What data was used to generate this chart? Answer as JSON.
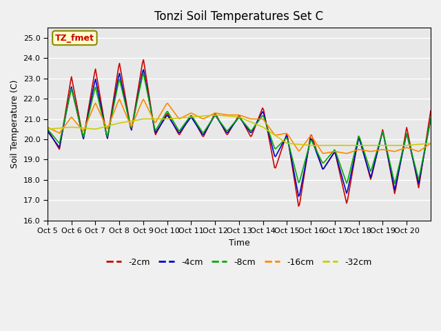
{
  "title": "Tonzi Soil Temperatures Set C",
  "xlabel": "Time",
  "ylabel": "Soil Temperature (C)",
  "ylim": [
    16.0,
    25.5
  ],
  "yticks": [
    16.0,
    17.0,
    18.0,
    19.0,
    20.0,
    21.0,
    22.0,
    23.0,
    24.0,
    25.0
  ],
  "xtick_labels": [
    "Oct 5",
    "Oct 6",
    "Oct 7",
    "Oct 8",
    "Oct 9",
    "Oct 10",
    "Oct 11",
    "Oct 12",
    "Oct 13",
    "Oct 14",
    "Oct 15",
    "Oct 16",
    "Oct 17",
    "Oct 18",
    "Oct 19",
    "Oct 20"
  ],
  "colors": {
    "-2cm": "#cc0000",
    "-4cm": "#0000cc",
    "-8cm": "#00aa00",
    "-16cm": "#ff8800",
    "-32cm": "#cccc00"
  },
  "legend_labels": [
    "-2cm",
    "-4cm",
    "-8cm",
    "-16cm",
    "-32cm"
  ],
  "annotation_text": "TZ_fmet",
  "annotation_color": "#cc0000",
  "annotation_bg": "#ffffcc",
  "annotation_edge": "#888800",
  "fig_bg_color": "#f0f0f0",
  "plot_bg_color": "#e8e8e8",
  "grid_color": "#ffffff"
}
